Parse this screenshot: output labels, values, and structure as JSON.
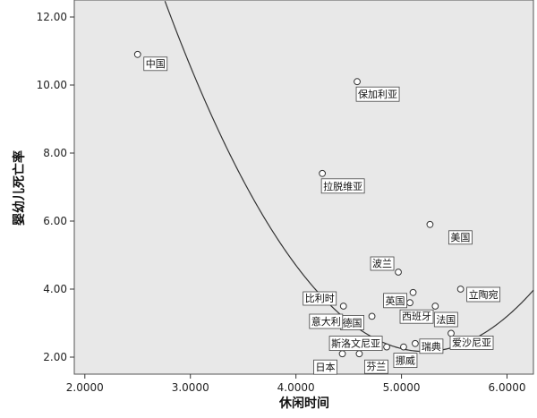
{
  "chart_data": {
    "type": "scatter",
    "xlabel": "休闲时间",
    "ylabel": "婴幼儿死亡率",
    "xlim": [
      1.9,
      6.25
    ],
    "ylim": [
      1.5,
      12.5
    ],
    "x_ticks": [
      2.0,
      3.0,
      4.0,
      5.0,
      6.0
    ],
    "x_tick_labels": [
      "2.0000",
      "3.0000",
      "4.0000",
      "5.0000",
      "6.0000"
    ],
    "y_ticks": [
      2.0,
      4.0,
      6.0,
      8.0,
      10.0,
      12.0
    ],
    "y_tick_labels": [
      "2.00",
      "4.00",
      "6.00",
      "8.00",
      "10.00",
      "12.00"
    ],
    "grid": false,
    "plot_background": "#e8e8e8",
    "point_fill": "#ffffff",
    "point_stroke": "#333333",
    "fit_curve": {
      "type": "quadratic",
      "coefficients": [
        48.5,
        -17.75,
        1.7
      ],
      "color": "#333333"
    },
    "points": [
      {
        "name": "中国",
        "x": 2.5,
        "y": 10.9
      },
      {
        "name": "保加利亚",
        "x": 4.58,
        "y": 10.1
      },
      {
        "name": "拉脱维亚",
        "x": 4.25,
        "y": 7.4
      },
      {
        "name": "美国",
        "x": 5.27,
        "y": 5.9
      },
      {
        "name": "波兰",
        "x": 4.97,
        "y": 4.5
      },
      {
        "name": "英国",
        "x": 5.11,
        "y": 3.9
      },
      {
        "name": "立陶宛",
        "x": 5.56,
        "y": 4.0
      },
      {
        "name": "比利时",
        "x": 4.45,
        "y": 3.5
      },
      {
        "name": "德国",
        "x": 4.72,
        "y": 3.2
      },
      {
        "name": "西班牙",
        "x": 5.08,
        "y": 3.6
      },
      {
        "name": "法国",
        "x": 5.32,
        "y": 3.5
      },
      {
        "name": "意大利",
        "x": 4.51,
        "y": 3.0
      },
      {
        "name": "斯洛文尼亚",
        "x": 4.86,
        "y": 2.3
      },
      {
        "name": "瑞典",
        "x": 5.13,
        "y": 2.4
      },
      {
        "name": "爱沙尼亚",
        "x": 5.47,
        "y": 2.7
      },
      {
        "name": "日本",
        "x": 4.44,
        "y": 2.1
      },
      {
        "name": "芬兰",
        "x": 4.6,
        "y": 2.1
      },
      {
        "name": "挪威",
        "x": 5.02,
        "y": 2.3
      }
    ]
  }
}
